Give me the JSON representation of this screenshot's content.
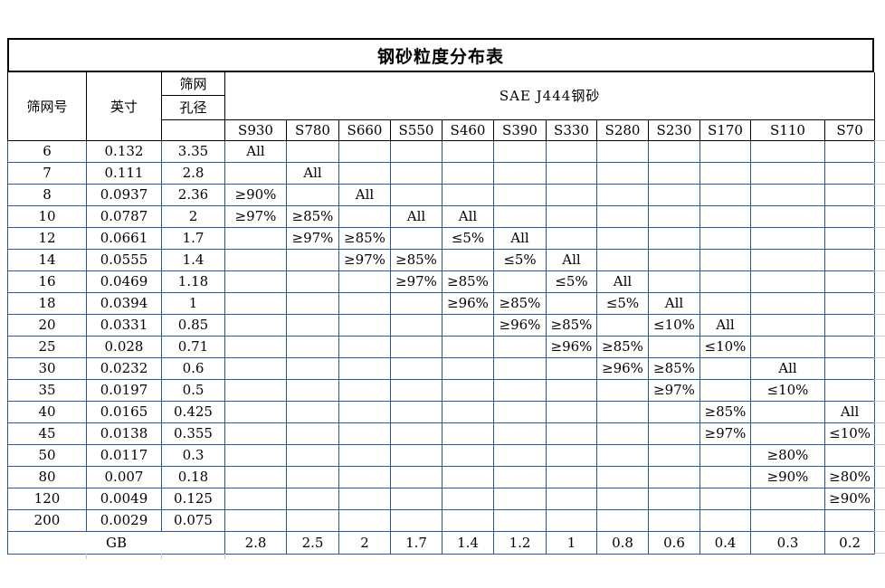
{
  "title": "钢砂粒度分布表",
  "header": {
    "mesh_label": "筛网号",
    "inch_label": "英寸",
    "aperture_label_line1": "筛网",
    "aperture_label_line2": "孔径",
    "sae_group_label": "SAE J444钢砂",
    "grades": [
      "S930",
      "S780",
      "S660",
      "S550",
      "S460",
      "S390",
      "S330",
      "S280",
      "S230",
      "S170",
      "S110",
      "S70"
    ]
  },
  "rows": [
    {
      "mesh": "6",
      "inch": "0.132",
      "aperture": "3.35",
      "cells": [
        "All",
        "",
        "",
        "",
        "",
        "",
        "",
        "",
        "",
        "",
        "",
        ""
      ]
    },
    {
      "mesh": "7",
      "inch": "0.111",
      "aperture": "2.8",
      "cells": [
        "",
        "All",
        "",
        "",
        "",
        "",
        "",
        "",
        "",
        "",
        "",
        ""
      ]
    },
    {
      "mesh": "8",
      "inch": "0.0937",
      "aperture": "2.36",
      "cells": [
        "≥90%",
        "",
        "All",
        "",
        "",
        "",
        "",
        "",
        "",
        "",
        "",
        ""
      ]
    },
    {
      "mesh": "10",
      "inch": "0.0787",
      "aperture": "2",
      "cells": [
        "≥97%",
        "≥85%",
        "",
        "All",
        "All",
        "",
        "",
        "",
        "",
        "",
        "",
        ""
      ]
    },
    {
      "mesh": "12",
      "inch": "0.0661",
      "aperture": "1.7",
      "cells": [
        "",
        "≥97%",
        "≥85%",
        "",
        "≤5%",
        "All",
        "",
        "",
        "",
        "",
        "",
        ""
      ]
    },
    {
      "mesh": "14",
      "inch": "0.0555",
      "aperture": "1.4",
      "cells": [
        "",
        "",
        "≥97%",
        "≥85%",
        "",
        "≤5%",
        "All",
        "",
        "",
        "",
        "",
        ""
      ]
    },
    {
      "mesh": "16",
      "inch": "0.0469",
      "aperture": "1.18",
      "cells": [
        "",
        "",
        "",
        "≥97%",
        "≥85%",
        "",
        "≤5%",
        "All",
        "",
        "",
        "",
        ""
      ]
    },
    {
      "mesh": "18",
      "inch": "0.0394",
      "aperture": "1",
      "cells": [
        "",
        "",
        "",
        "",
        "≥96%",
        "≥85%",
        "",
        "≤5%",
        "All",
        "",
        "",
        ""
      ]
    },
    {
      "mesh": "20",
      "inch": "0.0331",
      "aperture": "0.85",
      "cells": [
        "",
        "",
        "",
        "",
        "",
        "≥96%",
        "≥85%",
        "",
        "≤10%",
        "All",
        "",
        ""
      ]
    },
    {
      "mesh": "25",
      "inch": "0.028",
      "aperture": "0.71",
      "cells": [
        "",
        "",
        "",
        "",
        "",
        "",
        "≥96%",
        "≥85%",
        "",
        "≤10%",
        "",
        ""
      ]
    },
    {
      "mesh": "30",
      "inch": "0.0232",
      "aperture": "0.6",
      "cells": [
        "",
        "",
        "",
        "",
        "",
        "",
        "",
        "≥96%",
        "≥85%",
        "",
        "All",
        ""
      ]
    },
    {
      "mesh": "35",
      "inch": "0.0197",
      "aperture": "0.5",
      "cells": [
        "",
        "",
        "",
        "",
        "",
        "",
        "",
        "",
        "≥97%",
        "",
        "≤10%",
        ""
      ]
    },
    {
      "mesh": "40",
      "inch": "0.0165",
      "aperture": "0.425",
      "cells": [
        "",
        "",
        "",
        "",
        "",
        "",
        "",
        "",
        "",
        "≥85%",
        "",
        "All"
      ]
    },
    {
      "mesh": "45",
      "inch": "0.0138",
      "aperture": "0.355",
      "cells": [
        "",
        "",
        "",
        "",
        "",
        "",
        "",
        "",
        "",
        "≥97%",
        "",
        "≤10%"
      ]
    },
    {
      "mesh": "50",
      "inch": "0.0117",
      "aperture": "0.3",
      "cells": [
        "",
        "",
        "",
        "",
        "",
        "",
        "",
        "",
        "",
        "",
        "≥80%",
        ""
      ]
    },
    {
      "mesh": "80",
      "inch": "0.007",
      "aperture": "0.18",
      "cells": [
        "",
        "",
        "",
        "",
        "",
        "",
        "",
        "",
        "",
        "",
        "≥90%",
        "≥80%"
      ]
    },
    {
      "mesh": "120",
      "inch": "0.0049",
      "aperture": "0.125",
      "cells": [
        "",
        "",
        "",
        "",
        "",
        "",
        "",
        "",
        "",
        "",
        "",
        "≥90%"
      ]
    },
    {
      "mesh": "200",
      "inch": "0.0029",
      "aperture": "0.075",
      "cells": [
        "",
        "",
        "",
        "",
        "",
        "",
        "",
        "",
        "",
        "",
        "",
        ""
      ]
    }
  ],
  "footer": {
    "label": "GB",
    "values": [
      "2.8",
      "2.5",
      "2",
      "1.7",
      "1.4",
      "1.2",
      "1",
      "0.8",
      "0.6",
      "0.4",
      "0.3",
      "0.2"
    ]
  },
  "colors": {
    "grid_blue": "#2a5699",
    "border_black": "#000000",
    "gridline_gray": "#c9c9c9"
  }
}
